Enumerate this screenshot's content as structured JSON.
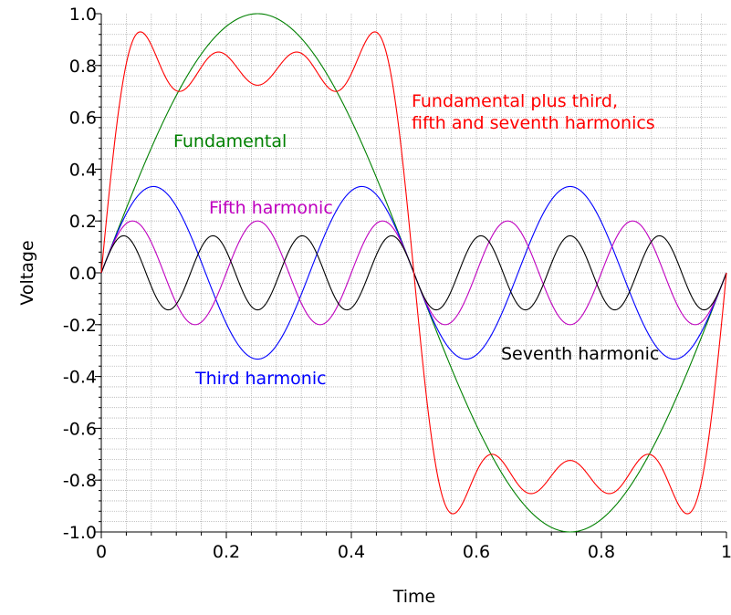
{
  "chart_data": {
    "type": "line",
    "title": "",
    "xlabel": "Time",
    "ylabel": "Voltage",
    "xlim": [
      0,
      1
    ],
    "ylim": [
      -1.0,
      1.0
    ],
    "x_ticks": [
      0,
      0.2,
      0.4,
      0.6,
      0.8,
      1
    ],
    "x_tick_labels": [
      "0",
      "0.2",
      "0.4",
      "0.6",
      "0.8",
      "1"
    ],
    "y_ticks": [
      1.0,
      0.8,
      0.6,
      0.4,
      0.2,
      0.0,
      -0.2,
      -0.4,
      -0.6,
      -0.8,
      -1.0
    ],
    "y_tick_labels": [
      "1.0",
      "0.8",
      "0.6",
      "0.4",
      "0.2",
      "0.0",
      "-0.2",
      "-0.4",
      "-0.6",
      "-0.8",
      "-1.0"
    ],
    "grid": true,
    "series": [
      {
        "name": "Fundamental",
        "color": "#008000",
        "amplitude": 1.0,
        "harmonic": 1,
        "formula": "sin(2πt)"
      },
      {
        "name": "Third harmonic",
        "color": "#0000ff",
        "amplitude": 0.333,
        "harmonic": 3,
        "formula": "(1/3)·sin(6πt)"
      },
      {
        "name": "Fifth harmonic",
        "color": "#bf00bf",
        "amplitude": 0.2,
        "harmonic": 5,
        "formula": "(1/5)·sin(10πt)"
      },
      {
        "name": "Seventh harmonic",
        "color": "#000000",
        "amplitude": 0.143,
        "harmonic": 7,
        "formula": "(1/7)·sin(14πt)"
      },
      {
        "name": "Fundamental plus third, fifth and seventh harmonics",
        "color": "#ff0000",
        "amplitude": null,
        "harmonic": null,
        "formula": "sum of the four components"
      }
    ],
    "annotations": [
      {
        "series": "Fundamental",
        "lines": [
          "Fundamental"
        ],
        "color": "#008000"
      },
      {
        "series": "Third harmonic",
        "lines": [
          "Third harmonic"
        ],
        "color": "#0000ff"
      },
      {
        "series": "Fifth harmonic",
        "lines": [
          "Fifth harmonic"
        ],
        "color": "#bf00bf"
      },
      {
        "series": "Seventh harmonic",
        "lines": [
          "Seventh harmonic"
        ],
        "color": "#000000"
      },
      {
        "series": "Fundamental plus third, fifth and seventh harmonics",
        "lines": [
          "Fundamental plus third,",
          "fifth and seventh harmonics"
        ],
        "color": "#ff0000"
      }
    ]
  }
}
